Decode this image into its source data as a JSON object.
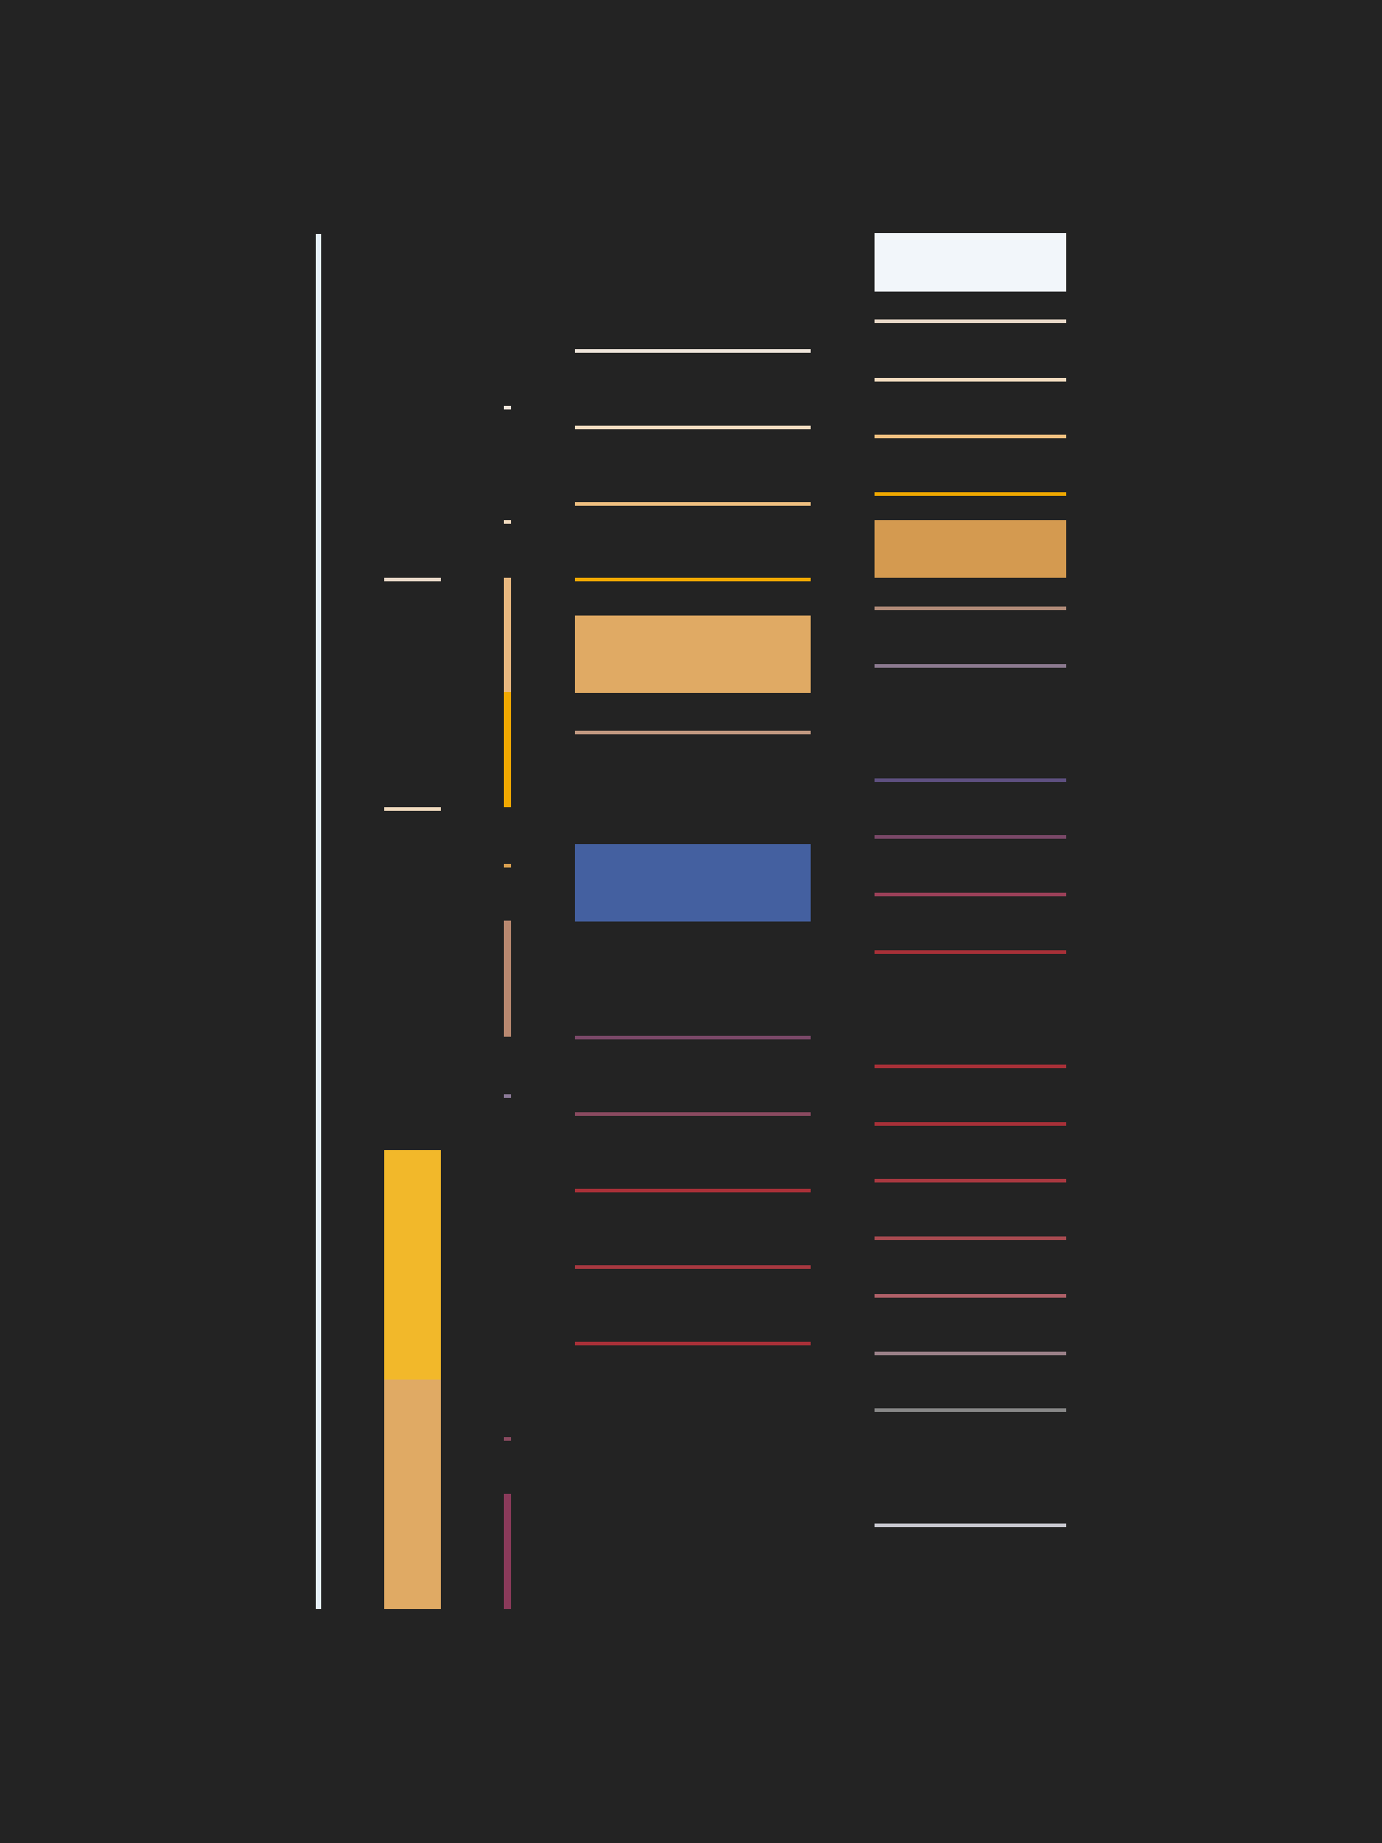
{
  "background": "#232323",
  "palette": {
    "ice": "#e6f0f8",
    "snow": "#f2f6fa",
    "cream": "#f0e6dc",
    "linen": "#e8d8c8",
    "bisque": "#f2dcc0",
    "peach": "#f0c080",
    "amber": "#f0a800",
    "sand": "#e0aa64",
    "ochre": "#d49a50",
    "tan": "#d9a050",
    "wheat": "#e8b880",
    "mocha": "#c09880",
    "taupe": "#b08a78",
    "rosewood": "#b88870",
    "lilac": "#8c7a90",
    "lavender": "#8c7a98",
    "indigo": "#5e5080",
    "plum": "#7a4868",
    "mauve": "#8a4a60",
    "berry": "#8a3a5a",
    "wine": "#9a4058",
    "crimson": "#a83038",
    "brick": "#a83840",
    "rust": "#a84a50",
    "rose": "#b06068",
    "dusk": "#9a8088",
    "gray": "#888888",
    "silver": "#c8c8d0",
    "yellow": "#f2b82a",
    "blue": "#4460a0"
  }
}
